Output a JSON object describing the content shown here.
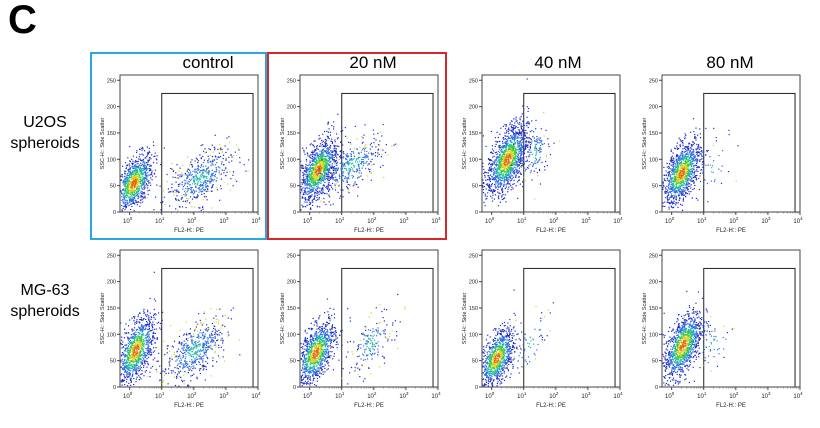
{
  "panel_letter": "C",
  "columns": [
    "control",
    "20 nM",
    "40 nM",
    "80 nM"
  ],
  "rows": [
    {
      "line1": "U2OS",
      "line2": "spheroids"
    },
    {
      "line1": "MG-63",
      "line2": "spheroids"
    }
  ],
  "highlight_colors": {
    "control": "#29a8e0",
    "20 nM": "#d9262b"
  },
  "scatter_palette": [
    "#1a2dcc",
    "#2f6fe0",
    "#1fb8a8",
    "#3ec93a",
    "#d8d320",
    "#e86a10"
  ],
  "chart_data": [
    {
      "type": "scatter",
      "row": "U2OS spheroids",
      "column": "control",
      "xlabel": "FL2-H:: PE",
      "ylabel": "SSC-H:: Side Scatter",
      "xscale": "log",
      "xlim": [
        0.5,
        10000
      ],
      "ylim": [
        0,
        260
      ],
      "xticks": [
        "10^0",
        "10^1",
        "10^2",
        "10^3",
        "10^4"
      ],
      "yticks": [
        0,
        50,
        100,
        150,
        200,
        250
      ],
      "gate": {
        "x": [
          10,
          7000
        ],
        "y": [
          0,
          225
        ]
      },
      "populations": [
        {
          "center": [
            1.3,
            55
          ],
          "xspread_decades": 0.3,
          "yspread": 28,
          "n": 900
        },
        {
          "center": [
            150,
            65
          ],
          "xspread_decades": 0.55,
          "yspread": 28,
          "n": 520
        }
      ]
    },
    {
      "type": "scatter",
      "row": "U2OS spheroids",
      "column": "20 nM",
      "xlabel": "FL2-H:: PE",
      "ylabel": "SSC-H:: Side Scatter",
      "xscale": "log",
      "xlim": [
        0.5,
        10000
      ],
      "ylim": [
        0,
        260
      ],
      "xticks": [
        "10^0",
        "10^1",
        "10^2",
        "10^3",
        "10^4"
      ],
      "yticks": [
        0,
        50,
        100,
        150,
        200,
        250
      ],
      "gate": {
        "x": [
          10,
          7000
        ],
        "y": [
          0,
          225
        ]
      },
      "populations": [
        {
          "center": [
            1.8,
            80
          ],
          "xspread_decades": 0.3,
          "yspread": 30,
          "n": 1100
        },
        {
          "center": [
            20,
            90
          ],
          "xspread_decades": 0.5,
          "yspread": 28,
          "n": 380
        }
      ]
    },
    {
      "type": "scatter",
      "row": "U2OS spheroids",
      "column": "40 nM",
      "xlabel": "FL2-H:: PE",
      "ylabel": "SSC-H:: Side Scatter",
      "xscale": "log",
      "xlim": [
        0.5,
        10000
      ],
      "ylim": [
        0,
        260
      ],
      "xticks": [
        "10^0",
        "10^1",
        "10^2",
        "10^3",
        "10^4"
      ],
      "yticks": [
        0,
        50,
        100,
        150,
        200,
        250
      ],
      "gate": {
        "x": [
          10,
          7000
        ],
        "y": [
          0,
          225
        ]
      },
      "populations": [
        {
          "center": [
            3,
            100
          ],
          "xspread_decades": 0.32,
          "yspread": 33,
          "n": 1300
        },
        {
          "center": [
            20,
            110
          ],
          "xspread_decades": 0.3,
          "yspread": 30,
          "n": 130
        }
      ]
    },
    {
      "type": "scatter",
      "row": "U2OS spheroids",
      "column": "80 nM",
      "xlabel": "FL2-H:: PE",
      "ylabel": "SSC-H:: Side Scatter",
      "xscale": "log",
      "xlim": [
        0.5,
        10000
      ],
      "ylim": [
        0,
        260
      ],
      "xticks": [
        "10^0",
        "10^1",
        "10^2",
        "10^3",
        "10^4"
      ],
      "yticks": [
        0,
        50,
        100,
        150,
        200,
        250
      ],
      "gate": {
        "x": [
          10,
          7000
        ],
        "y": [
          0,
          225
        ]
      },
      "populations": [
        {
          "center": [
            2,
            75
          ],
          "xspread_decades": 0.3,
          "yspread": 30,
          "n": 1100
        },
        {
          "center": [
            20,
            85
          ],
          "xspread_decades": 0.35,
          "yspread": 30,
          "n": 40
        }
      ]
    },
    {
      "type": "scatter",
      "row": "MG-63 spheroids",
      "column": "control",
      "xlabel": "FL2-H:: PE",
      "ylabel": "SSC-H:: Side Scatter",
      "xscale": "log",
      "xlim": [
        0.5,
        10000
      ],
      "ylim": [
        0,
        260
      ],
      "xticks": [
        "10^0",
        "10^1",
        "10^2",
        "10^3",
        "10^4"
      ],
      "yticks": [
        0,
        50,
        100,
        150,
        200,
        250
      ],
      "gate": {
        "x": [
          10,
          7000
        ],
        "y": [
          0,
          225
        ]
      },
      "populations": [
        {
          "center": [
            1.5,
            70
          ],
          "xspread_decades": 0.3,
          "yspread": 32,
          "n": 1000
        },
        {
          "center": [
            100,
            70
          ],
          "xspread_decades": 0.5,
          "yspread": 30,
          "n": 540
        }
      ]
    },
    {
      "type": "scatter",
      "row": "MG-63 spheroids",
      "column": "20 nM",
      "xlabel": "FL2-H:: PE",
      "ylabel": "SSC-H:: Side Scatter",
      "xscale": "log",
      "xlim": [
        0.5,
        10000
      ],
      "ylim": [
        0,
        260
      ],
      "xticks": [
        "10^0",
        "10^1",
        "10^2",
        "10^3",
        "10^4"
      ],
      "yticks": [
        0,
        50,
        100,
        150,
        200,
        250
      ],
      "gate": {
        "x": [
          10,
          7000
        ],
        "y": [
          0,
          225
        ]
      },
      "populations": [
        {
          "center": [
            1.5,
            65
          ],
          "xspread_decades": 0.3,
          "yspread": 30,
          "n": 1000
        },
        {
          "center": [
            80,
            85
          ],
          "xspread_decades": 0.35,
          "yspread": 30,
          "n": 180
        }
      ]
    },
    {
      "type": "scatter",
      "row": "MG-63 spheroids",
      "column": "40 nM",
      "xlabel": "FL2-H:: PE",
      "ylabel": "SSC-H:: Side Scatter",
      "xscale": "log",
      "xlim": [
        0.5,
        10000
      ],
      "ylim": [
        0,
        260
      ],
      "xticks": [
        "10^0",
        "10^1",
        "10^2",
        "10^3",
        "10^4"
      ],
      "yticks": [
        0,
        50,
        100,
        150,
        200,
        250
      ],
      "gate": {
        "x": [
          10,
          7000
        ],
        "y": [
          0,
          225
        ]
      },
      "populations": [
        {
          "center": [
            1.4,
            55
          ],
          "xspread_decades": 0.28,
          "yspread": 28,
          "n": 900
        },
        {
          "center": [
            15,
            80
          ],
          "xspread_decades": 0.3,
          "yspread": 30,
          "n": 60
        }
      ]
    },
    {
      "type": "scatter",
      "row": "MG-63 spheroids",
      "column": "80 nM",
      "xlabel": "FL2-H:: PE",
      "ylabel": "SSC-H:: Side Scatter",
      "xscale": "log",
      "xlim": [
        0.5,
        10000
      ],
      "ylim": [
        0,
        260
      ],
      "xticks": [
        "10^0",
        "10^1",
        "10^2",
        "10^3",
        "10^4"
      ],
      "yticks": [
        0,
        50,
        100,
        150,
        200,
        250
      ],
      "gate": {
        "x": [
          10,
          7000
        ],
        "y": [
          0,
          225
        ]
      },
      "populations": [
        {
          "center": [
            2.2,
            80
          ],
          "xspread_decades": 0.3,
          "yspread": 32,
          "n": 1100
        },
        {
          "center": [
            20,
            80
          ],
          "xspread_decades": 0.35,
          "yspread": 30,
          "n": 40
        }
      ]
    }
  ]
}
